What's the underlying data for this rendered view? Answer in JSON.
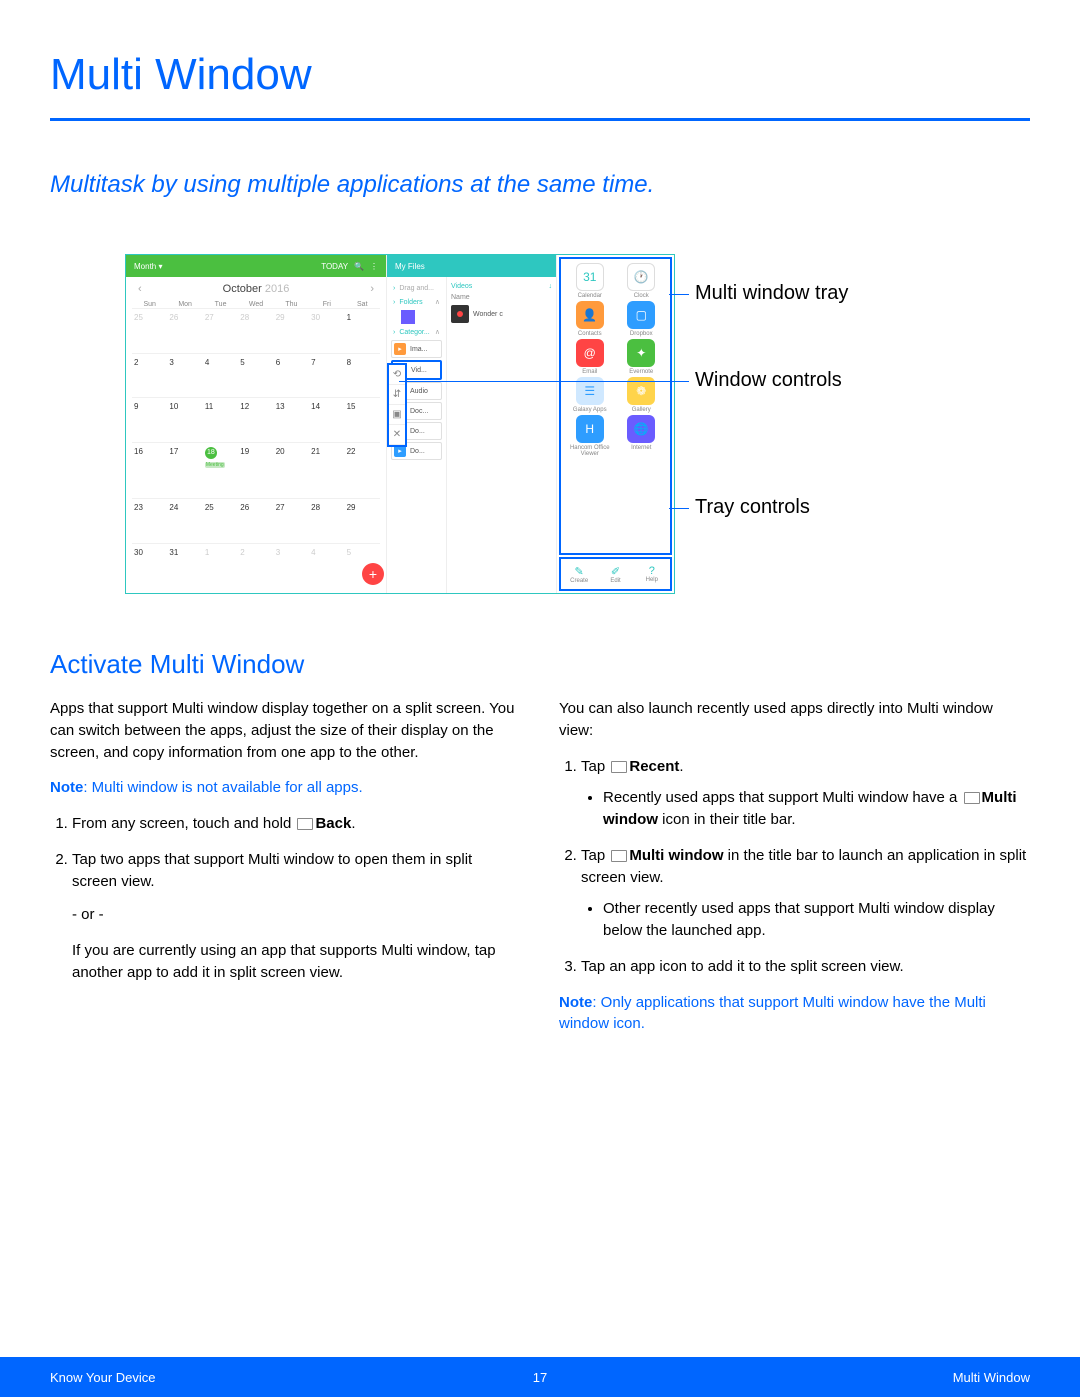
{
  "colors": {
    "primary": "#0066ff",
    "green": "#4bbf40",
    "teal": "#2ec7c0",
    "red": "#ff4444"
  },
  "title": "Multi Window",
  "subtitle": "Multitask by using multiple applications at the same time.",
  "callouts": {
    "tray": "Multi window tray",
    "controls": "Window controls",
    "trayControls": "Tray controls"
  },
  "calendar": {
    "viewLabel": "Month ▾",
    "today": "TODAY",
    "month": "October",
    "year": "2016",
    "dow": [
      "Sun",
      "Mon",
      "Tue",
      "Wed",
      "Thu",
      "Fri",
      "Sat"
    ],
    "rows": [
      [
        "25",
        "26",
        "27",
        "28",
        "29",
        "30",
        "1"
      ],
      [
        "2",
        "3",
        "4",
        "5",
        "6",
        "7",
        "8"
      ],
      [
        "9",
        "10",
        "11",
        "12",
        "13",
        "14",
        "15"
      ],
      [
        "16",
        "17",
        "18",
        "19",
        "20",
        "21",
        "22"
      ],
      [
        "23",
        "24",
        "25",
        "26",
        "27",
        "28",
        "29"
      ],
      [
        "30",
        "31",
        "1",
        "2",
        "3",
        "4",
        "5"
      ]
    ],
    "highlightDay": "18",
    "eventLabel": "Meeting"
  },
  "files": {
    "header": "My Files",
    "leftSections": [
      {
        "label": "Drag and..."
      },
      {
        "label": "Folders",
        "expand": "∧"
      },
      {
        "label": "Categor...",
        "expand": "∧"
      },
      {
        "label": "Ima...",
        "color": "#ff9a3c"
      },
      {
        "label": "Vid...",
        "color": "#8a5cff"
      },
      {
        "label": "Audio",
        "color": "#2e9dff"
      },
      {
        "label": "Doc...",
        "color": "#ff8a3c"
      },
      {
        "label": "Do...",
        "color": "#ff5a3c"
      },
      {
        "label": "Do...",
        "color": "#2e9dff"
      }
    ],
    "right": {
      "videos": "Videos",
      "name": "Name",
      "item": "Wonder c"
    }
  },
  "tray": {
    "apps": [
      {
        "label": "Calendar",
        "bg": "#ffffff",
        "txt": "31",
        "fg": "#2ec7c0",
        "bord": "#ddd"
      },
      {
        "label": "Clock",
        "bg": "#ffffff",
        "txt": "🕐",
        "fg": "#888",
        "bord": "#ddd"
      },
      {
        "label": "Contacts",
        "bg": "#ff9a3c",
        "txt": "👤"
      },
      {
        "label": "Dropbox",
        "bg": "#2e9dff",
        "txt": "▢"
      },
      {
        "label": "Email",
        "bg": "#ff4444",
        "txt": "@"
      },
      {
        "label": "Evernote",
        "bg": "#4bbf40",
        "txt": "✦"
      },
      {
        "label": "Galaxy Apps",
        "bg": "#cfe8ff",
        "txt": "☰",
        "fg": "#2e9dff"
      },
      {
        "label": "Gallery",
        "bg": "#ffd44b",
        "txt": "❁"
      },
      {
        "label": "Hancom Office Viewer",
        "bg": "#2e9dff",
        "txt": "H"
      },
      {
        "label": "Internet",
        "bg": "#6a5cff",
        "txt": "🌐"
      }
    ],
    "controls": [
      {
        "label": "Create",
        "glyph": "✎"
      },
      {
        "label": "Edit",
        "glyph": "✐"
      },
      {
        "label": "Help",
        "glyph": "?"
      }
    ]
  },
  "windowControls": [
    "⟲",
    "⇵",
    "▣",
    "✕"
  ],
  "section": {
    "heading": "Activate Multi Window",
    "left": {
      "p1": "Apps that support Multi window display together on a split screen. You can switch between the apps, adjust the size of their display on the screen, and copy information from one app to the other.",
      "noteLabel": "Note",
      "note": ": Multi window is not available for all apps.",
      "step1a": "From any screen, touch and hold ",
      "step1b": "Back",
      "step1c": ".",
      "step2": "Tap two apps that support Multi window to open them in split screen view.",
      "or": "- or -",
      "alt": "If you are currently using an app that supports Multi window, tap another app to add it in split screen view."
    },
    "right": {
      "p1": "You can also launch recently used apps directly into Multi window view:",
      "step1a": "Tap ",
      "step1b": "Recent",
      "step1c": ".",
      "bullet1a": "Recently used apps that support Multi window have a ",
      "bullet1b": "Multi window",
      "bullet1c": " icon in their title bar.",
      "step2a": "Tap ",
      "step2b": "Multi window",
      "step2c": " in the title bar to launch an application in split screen view.",
      "bullet2": "Other recently used apps that support Multi window display below the launched app.",
      "step3": "Tap an app icon to add it to the split screen view.",
      "noteLabel": "Note",
      "note": ": Only applications that support Multi window have the Multi window icon."
    }
  },
  "footer": {
    "left": "Know Your Device",
    "page": "17",
    "right": "Multi Window"
  }
}
